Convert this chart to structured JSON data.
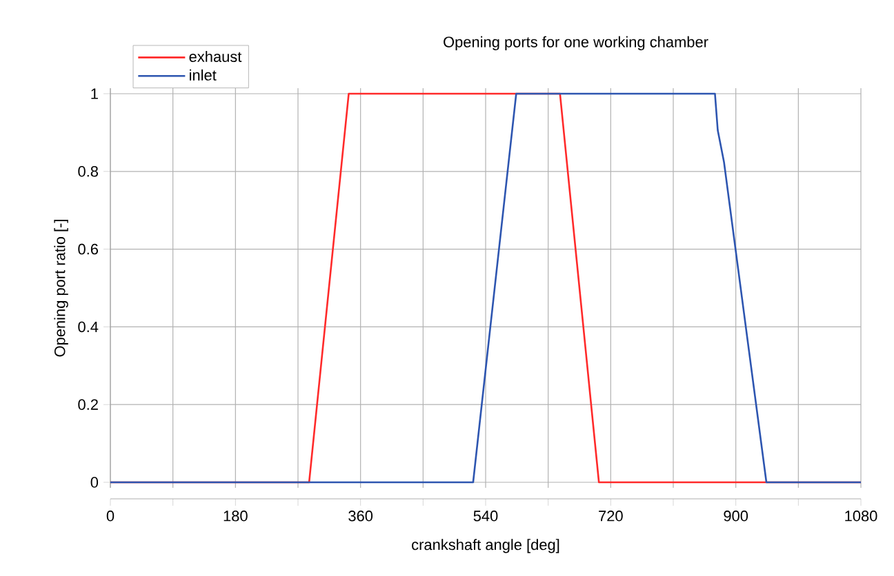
{
  "chart_data": {
    "type": "line",
    "title": "Opening ports for one working chamber",
    "xlabel": "crankshaft angle [deg]",
    "ylabel": "Opening port ratio [-]",
    "xlim": [
      0,
      1080
    ],
    "ylim": [
      0,
      1
    ],
    "xticks": [
      0,
      {
        "value": 90,
        "label": null
      },
      180,
      {
        "value": 270,
        "label": null
      },
      360,
      {
        "value": 450,
        "label": null
      },
      540,
      {
        "value": 630,
        "label": null
      },
      720,
      {
        "value": 810,
        "label": null
      },
      900,
      {
        "value": 990,
        "label": null
      },
      1080
    ],
    "yticks": [
      0,
      0.2,
      0.4,
      0.6,
      0.8,
      1
    ],
    "grid": true,
    "legend": "top left",
    "marker": "none",
    "line_style": "solid",
    "series": [
      {
        "name": "exhaust",
        "color": "#ff2a2a",
        "x": [
          0,
          286,
          343,
          647,
          703,
          1080
        ],
        "values": [
          0,
          0,
          1,
          1,
          0,
          0
        ]
      },
      {
        "name": "inlet",
        "color": "#2d55b0",
        "x": [
          0,
          522,
          584,
          870,
          874,
          883,
          944,
          1080
        ],
        "values": [
          0,
          0,
          1,
          1,
          0.906,
          0.824,
          0,
          0
        ]
      }
    ]
  }
}
